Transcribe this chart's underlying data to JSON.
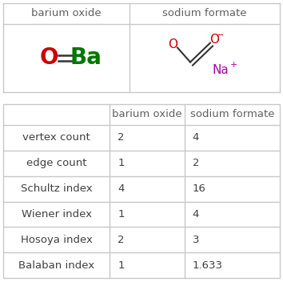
{
  "col_headers": [
    "",
    "barium oxide",
    "sodium formate"
  ],
  "row_labels": [
    "vertex count",
    "edge count",
    "Schultz index",
    "Wiener index",
    "Hosoya index",
    "Balaban index"
  ],
  "barium_oxide_values": [
    "2",
    "1",
    "4",
    "1",
    "2",
    "1"
  ],
  "sodium_formate_values": [
    "4",
    "2",
    "16",
    "4",
    "3",
    "1.633"
  ],
  "top_labels": [
    "barium oxide",
    "sodium formate"
  ],
  "bg_color": "#ffffff",
  "grid_color": "#c8c8c8",
  "text_color": "#404040",
  "header_color": "#606060",
  "o_color": "#cc0000",
  "ba_color": "#007700",
  "na_color": "#aa00aa"
}
